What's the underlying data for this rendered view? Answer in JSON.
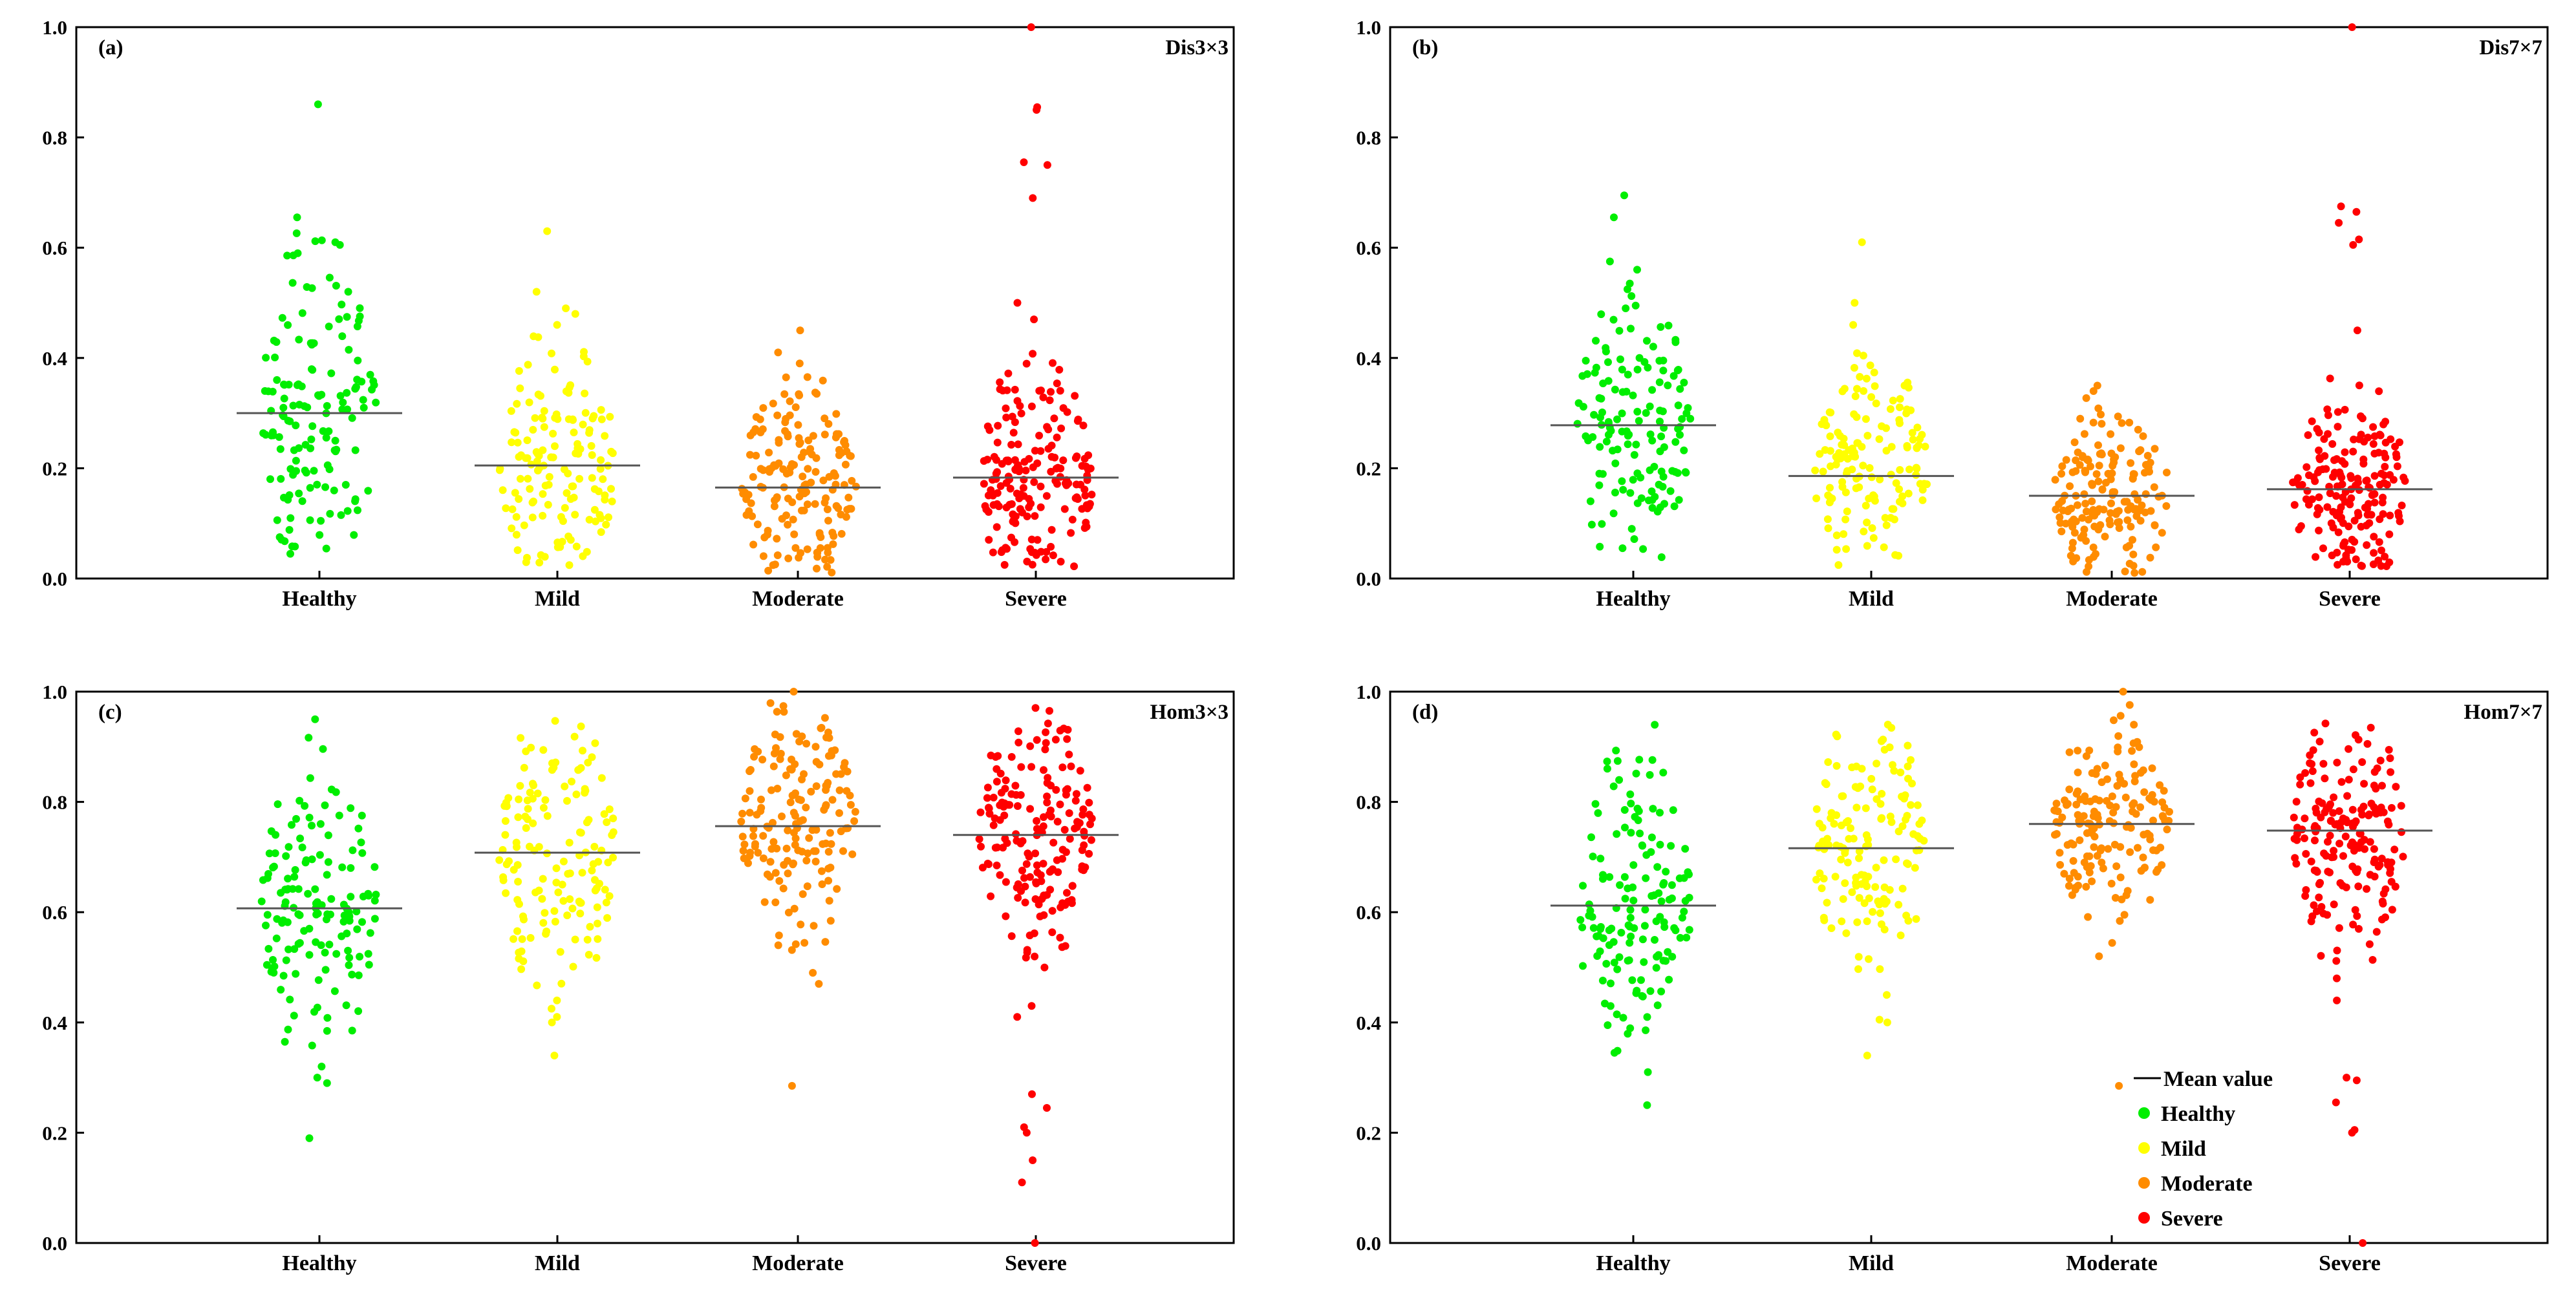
{
  "figure": {
    "legend": {
      "mean_label": "Mean value",
      "items": [
        {
          "label": "Healthy",
          "color": "#00ee00"
        },
        {
          "label": "Mild",
          "color": "#ffff00"
        },
        {
          "label": "Moderate",
          "color": "#ff8c00"
        },
        {
          "label": "Severe",
          "color": "#ff0000"
        }
      ]
    },
    "colors": {
      "Healthy": "#00ee00",
      "Mild": "#ffff00",
      "Moderate": "#ff8c00",
      "Severe": "#ff0000"
    }
  },
  "chart_data": [
    {
      "type": "scatter",
      "panel": "(a)",
      "title": "Dis3×3",
      "categories": [
        "Healthy",
        "Mild",
        "Moderate",
        "Severe"
      ],
      "means": [
        0.3,
        0.205,
        0.165,
        0.183
      ],
      "ylim": [
        0,
        1.0
      ],
      "yticks": [
        "0.0",
        "0.2",
        "0.4",
        "0.6",
        "0.8",
        "1.0"
      ],
      "series": [
        {
          "name": "Healthy",
          "count": 150,
          "range": [
            0.03,
            0.86
          ],
          "sd": 0.14,
          "outliers": [
            0.86,
            0.655,
            0.61,
            0.605,
            0.59,
            0.52
          ]
        },
        {
          "name": "Mild",
          "count": 150,
          "range": [
            0.02,
            0.63
          ],
          "sd": 0.11,
          "outliers": [
            0.63,
            0.52,
            0.49,
            0.48,
            0.46
          ]
        },
        {
          "name": "Moderate",
          "count": 170,
          "range": [
            0.01,
            0.45
          ],
          "sd": 0.085,
          "outliers": [
            0.45,
            0.41,
            0.39
          ]
        },
        {
          "name": "Severe",
          "count": 190,
          "range": [
            0.02,
            1.0
          ],
          "sd": 0.095,
          "outliers": [
            1.0,
            0.855,
            0.85,
            0.755,
            0.75,
            0.69,
            0.5,
            0.47
          ]
        }
      ]
    },
    {
      "type": "scatter",
      "panel": "(b)",
      "title": "Dis7×7",
      "categories": [
        "Healthy",
        "Mild",
        "Moderate",
        "Severe"
      ],
      "means": [
        0.278,
        0.186,
        0.15,
        0.162
      ],
      "ylim": [
        0,
        1.0
      ],
      "yticks": [
        "0.0",
        "0.2",
        "0.4",
        "0.6",
        "0.8",
        "1.0"
      ],
      "series": [
        {
          "name": "Healthy",
          "count": 150,
          "range": [
            0.03,
            0.7
          ],
          "sd": 0.12,
          "outliers": [
            0.695,
            0.655,
            0.575,
            0.56,
            0.535
          ]
        },
        {
          "name": "Mild",
          "count": 150,
          "range": [
            0.02,
            0.61
          ],
          "sd": 0.095,
          "outliers": [
            0.61,
            0.5,
            0.46
          ]
        },
        {
          "name": "Moderate",
          "count": 170,
          "range": [
            0.01,
            0.35
          ],
          "sd": 0.075,
          "outliers": [
            0.35,
            0.34
          ]
        },
        {
          "name": "Severe",
          "count": 190,
          "range": [
            0.02,
            1.0
          ],
          "sd": 0.085,
          "outliers": [
            1.0,
            0.675,
            0.665,
            0.645,
            0.615,
            0.605,
            0.45
          ]
        }
      ]
    },
    {
      "type": "scatter",
      "panel": "(c)",
      "title": "Hom3×3",
      "categories": [
        "Healthy",
        "Mild",
        "Moderate",
        "Severe"
      ],
      "means": [
        0.607,
        0.708,
        0.756,
        0.74
      ],
      "ylim": [
        0,
        1.0
      ],
      "yticks": [
        "0.0",
        "0.2",
        "0.4",
        "0.6",
        "0.8",
        "1.0"
      ],
      "series": [
        {
          "name": "Healthy",
          "count": 150,
          "range": [
            0.19,
            0.95
          ],
          "sd": 0.13,
          "outliers": [
            0.19,
            0.3,
            0.29,
            0.365,
            0.32,
            0.95
          ]
        },
        {
          "name": "Mild",
          "count": 150,
          "range": [
            0.34,
            0.96
          ],
          "sd": 0.12,
          "outliers": [
            0.34,
            0.4,
            0.41,
            0.44
          ]
        },
        {
          "name": "Moderate",
          "count": 170,
          "range": [
            0.28,
            1.0
          ],
          "sd": 0.1,
          "outliers": [
            0.285,
            0.47,
            0.49,
            1.0
          ]
        },
        {
          "name": "Severe",
          "count": 190,
          "range": [
            0.0,
            1.0
          ],
          "sd": 0.11,
          "outliers": [
            0.0,
            0.11,
            0.15,
            0.2,
            0.21,
            0.245,
            0.27,
            0.41,
            0.43
          ]
        }
      ]
    },
    {
      "type": "scatter",
      "panel": "(d)",
      "title": "Hom7×7",
      "categories": [
        "Healthy",
        "Mild",
        "Moderate",
        "Severe"
      ],
      "means": [
        0.612,
        0.716,
        0.76,
        0.748
      ],
      "ylim": [
        0,
        1.0
      ],
      "yticks": [
        "0.0",
        "0.2",
        "0.4",
        "0.6",
        "0.8",
        "1.0"
      ],
      "series": [
        {
          "name": "Healthy",
          "count": 150,
          "range": [
            0.25,
            0.94
          ],
          "sd": 0.12,
          "outliers": [
            0.25,
            0.31,
            0.345,
            0.94
          ]
        },
        {
          "name": "Mild",
          "count": 150,
          "range": [
            0.34,
            0.95
          ],
          "sd": 0.11,
          "outliers": [
            0.34,
            0.4,
            0.405,
            0.45
          ]
        },
        {
          "name": "Moderate",
          "count": 170,
          "range": [
            0.28,
            1.0
          ],
          "sd": 0.09,
          "outliers": [
            0.285,
            0.52,
            1.0
          ]
        },
        {
          "name": "Severe",
          "count": 190,
          "range": [
            0.0,
            0.97
          ],
          "sd": 0.1,
          "outliers": [
            0.0,
            0.2,
            0.205,
            0.255,
            0.295,
            0.3,
            0.44,
            0.48
          ]
        }
      ]
    }
  ]
}
